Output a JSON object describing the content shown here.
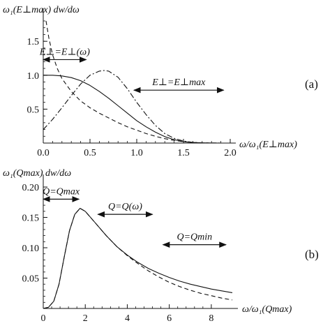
{
  "chart_data": [
    {
      "type": "line",
      "panel_label": "(a)",
      "ylabel": "ω₁(E⊥max) dw/dω",
      "xlabel": "ω/ω₁(E⊥max)",
      "xlim": [
        0,
        2.0
      ],
      "ylim": [
        0,
        1.8
      ],
      "x_ticks": [
        "0.0",
        "0.5",
        "1.0",
        "1.5",
        "2.0"
      ],
      "x_tick_values": [
        0,
        0.5,
        1.0,
        1.5,
        2.0
      ],
      "y_ticks": [
        "0.5",
        "1.0",
        "1.5"
      ],
      "y_tick_values": [
        0.5,
        1.0,
        1.5
      ],
      "annotations": [
        {
          "text": "E⊥=E⊥(ω)",
          "x_from": 0,
          "x_to": 0.46,
          "y": 1.23
        },
        {
          "text": "E⊥=E⊥max",
          "x_from": 0.97,
          "x_to": 1.93,
          "y": 0.78
        }
      ],
      "series": [
        {
          "style": "solid",
          "x": [
            0,
            0.1,
            0.2,
            0.3,
            0.4,
            0.5,
            0.6,
            0.7,
            0.8,
            0.9,
            1.0,
            1.1,
            1.2,
            1.3,
            1.4,
            1.5,
            1.6,
            1.7,
            1.8,
            1.9,
            2.0
          ],
          "values": [
            1.0,
            1.0,
            0.99,
            0.965,
            0.92,
            0.85,
            0.76,
            0.66,
            0.55,
            0.44,
            0.33,
            0.24,
            0.16,
            0.095,
            0.05,
            0.022,
            0.008,
            0.003,
            0.001,
            0.0,
            0.0
          ]
        },
        {
          "style": "dashed",
          "x": [
            0.03,
            0.06,
            0.1,
            0.15,
            0.2,
            0.3,
            0.4,
            0.5,
            0.6,
            0.7,
            0.8,
            0.9,
            1.0,
            1.1,
            1.2,
            1.3,
            1.4,
            1.5,
            1.6,
            1.7,
            1.8,
            1.9,
            2.0
          ],
          "values": [
            1.8,
            1.55,
            1.3,
            1.1,
            0.95,
            0.76,
            0.62,
            0.52,
            0.44,
            0.37,
            0.3,
            0.24,
            0.19,
            0.14,
            0.1,
            0.065,
            0.04,
            0.02,
            0.008,
            0.003,
            0.001,
            0.0,
            0.0
          ]
        },
        {
          "style": "dashdot",
          "x": [
            0,
            0.1,
            0.2,
            0.3,
            0.4,
            0.5,
            0.6,
            0.65,
            0.7,
            0.8,
            0.9,
            1.0,
            1.1,
            1.2,
            1.3,
            1.4,
            1.5,
            1.6,
            1.7,
            1.8,
            1.9,
            2.0
          ],
          "values": [
            0.2,
            0.35,
            0.52,
            0.7,
            0.87,
            1.0,
            1.06,
            1.07,
            1.06,
            0.97,
            0.8,
            0.6,
            0.42,
            0.26,
            0.14,
            0.07,
            0.03,
            0.01,
            0.003,
            0.001,
            0.0,
            0.0
          ]
        }
      ]
    },
    {
      "type": "line",
      "panel_label": "(b)",
      "ylabel": "ω₁(Qmax) dw/dω",
      "xlabel": "ω/ω₁(Qmax)",
      "xlim": [
        0,
        9
      ],
      "ylim": [
        0,
        0.2
      ],
      "x_ticks": [
        "0",
        "2",
        "4",
        "6",
        "8"
      ],
      "x_tick_values": [
        0,
        2,
        4,
        6,
        8
      ],
      "y_ticks": [
        "0.05",
        "0.10",
        "0.15",
        "0.20"
      ],
      "y_tick_values": [
        0.05,
        0.1,
        0.15,
        0.2
      ],
      "annotations": [
        {
          "text": "Q=Qmax",
          "x_from": 0,
          "x_to": 1.7,
          "y": 0.18
        },
        {
          "text": "Q=Q(ω)",
          "x_from": 2.6,
          "x_to": 5.2,
          "y": 0.155
        },
        {
          "text": "Q=Qmin",
          "x_from": 5.7,
          "x_to": 8.7,
          "y": 0.105
        }
      ],
      "series": [
        {
          "style": "solid",
          "x": [
            0,
            0.25,
            0.5,
            0.75,
            1.0,
            1.25,
            1.5,
            1.75,
            2.0,
            2.5,
            3.0,
            3.5,
            4.0,
            4.5,
            5.0,
            5.5,
            6.0,
            6.5,
            7.0,
            7.5,
            8.0,
            8.5,
            9.0
          ],
          "values": [
            0,
            0.002,
            0.012,
            0.04,
            0.085,
            0.128,
            0.155,
            0.165,
            0.16,
            0.14,
            0.12,
            0.102,
            0.088,
            0.076,
            0.066,
            0.058,
            0.051,
            0.045,
            0.04,
            0.036,
            0.032,
            0.029,
            0.026
          ]
        },
        {
          "style": "dashed",
          "x": [
            0,
            0.25,
            0.5,
            0.75,
            1.0,
            1.25,
            1.5,
            1.75,
            2.0,
            2.5,
            3.0,
            3.5,
            4.0,
            4.5,
            5.0,
            5.5,
            6.0,
            6.5,
            7.0,
            7.5,
            8.0,
            8.5,
            9.0
          ],
          "values": [
            0,
            0.002,
            0.012,
            0.04,
            0.085,
            0.128,
            0.155,
            0.165,
            0.16,
            0.14,
            0.12,
            0.102,
            0.087,
            0.074,
            0.062,
            0.052,
            0.043,
            0.036,
            0.03,
            0.025,
            0.021,
            0.017,
            0.014
          ]
        }
      ]
    }
  ]
}
